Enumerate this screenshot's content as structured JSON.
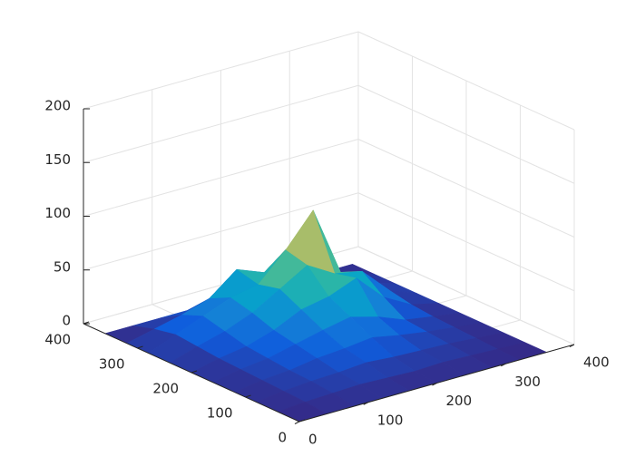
{
  "chart_data": {
    "type": "surface",
    "colormap": "parula",
    "xlim": [
      0,
      400
    ],
    "ylim": [
      0,
      400
    ],
    "zlim": [
      0,
      200
    ],
    "xticks": [
      0,
      100,
      200,
      300,
      400
    ],
    "yticks": [
      0,
      100,
      200,
      300,
      400
    ],
    "zticks": [
      0,
      50,
      100,
      150,
      200
    ],
    "grid": true,
    "x": [
      0,
      40,
      80,
      120,
      160,
      200,
      240,
      280,
      320,
      360
    ],
    "y": [
      0,
      40,
      80,
      120,
      160,
      200,
      240,
      280,
      320,
      360
    ],
    "z": [
      [
        0,
        0,
        0,
        0,
        0,
        0,
        0,
        0,
        0,
        0
      ],
      [
        0,
        2,
        3,
        4,
        3,
        2,
        3,
        2,
        1,
        0
      ],
      [
        0,
        3,
        5,
        6,
        8,
        6,
        5,
        4,
        2,
        0
      ],
      [
        0,
        4,
        6,
        10,
        12,
        15,
        10,
        6,
        3,
        0
      ],
      [
        0,
        5,
        8,
        14,
        20,
        25,
        18,
        8,
        4,
        0
      ],
      [
        0,
        6,
        10,
        18,
        30,
        35,
        45,
        20,
        6,
        0
      ],
      [
        0,
        8,
        15,
        25,
        40,
        55,
        40,
        35,
        10,
        0
      ],
      [
        0,
        10,
        20,
        30,
        35,
        60,
        90,
        25,
        8,
        0
      ],
      [
        0,
        6,
        12,
        20,
        40,
        30,
        50,
        15,
        5,
        0
      ],
      [
        0,
        0,
        0,
        0,
        0,
        0,
        0,
        0,
        0,
        0
      ]
    ]
  }
}
